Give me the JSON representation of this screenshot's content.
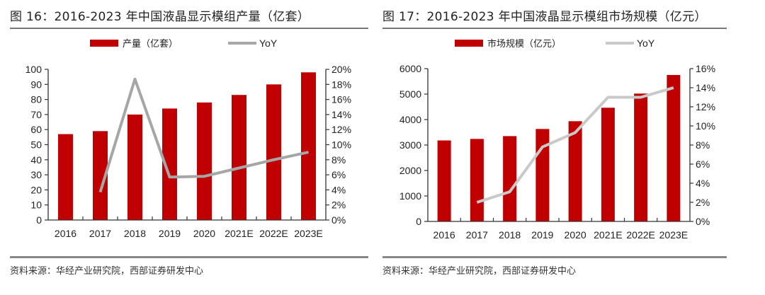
{
  "chart_data": [
    {
      "type": "bar",
      "title": "图 16：2016-2023 年中国液晶显示模组产量（亿套）",
      "categories": [
        "2016",
        "2017",
        "2018",
        "2019",
        "2020",
        "2021E",
        "2022E",
        "2023E"
      ],
      "series": [
        {
          "name": "产量（亿套）",
          "type": "bar",
          "axis": "left",
          "color": "#c00000",
          "values": [
            57,
            59,
            70,
            74,
            78,
            83,
            90,
            98
          ]
        },
        {
          "name": "YoY",
          "type": "line",
          "axis": "right",
          "color": "#a6a6a6",
          "values": [
            null,
            3.7,
            18.7,
            5.7,
            5.8,
            6.9,
            8.0,
            9.0
          ]
        }
      ],
      "ylim": [
        0,
        100
      ],
      "yticks": [
        "0",
        "10",
        "20",
        "30",
        "40",
        "50",
        "60",
        "70",
        "80",
        "90",
        "100"
      ],
      "y2lim": [
        0,
        20
      ],
      "y2ticks": [
        "0%",
        "2%",
        "4%",
        "6%",
        "8%",
        "10%",
        "12%",
        "14%",
        "16%",
        "18%",
        "20%"
      ],
      "legend": "top-center",
      "grid": false,
      "source": "资料来源：华经产业研究院，西部证券研发中心"
    },
    {
      "type": "bar",
      "title": "图 17：2016-2023 年中国液晶显示模组市场规模（亿元）",
      "categories": [
        "2016",
        "2017",
        "2018",
        "2019",
        "2020",
        "2021E",
        "2022E",
        "2023E"
      ],
      "series": [
        {
          "name": "市场规模（亿元）",
          "type": "bar",
          "axis": "left",
          "color": "#c00000",
          "values": [
            3180,
            3240,
            3350,
            3630,
            3935,
            4465,
            5020,
            5750
          ]
        },
        {
          "name": "YoY",
          "type": "line",
          "axis": "right",
          "color": "#c9c9c9",
          "values": [
            null,
            2.0,
            3.1,
            7.8,
            9.3,
            13.0,
            13.0,
            14.0
          ]
        }
      ],
      "ylim": [
        0,
        6000
      ],
      "yticks": [
        "0",
        "1000",
        "2000",
        "3000",
        "4000",
        "5000",
        "6000"
      ],
      "y2lim": [
        0,
        16
      ],
      "y2ticks": [
        "0%",
        "2%",
        "4%",
        "6%",
        "8%",
        "10%",
        "12%",
        "14%",
        "16%"
      ],
      "legend": "top-center",
      "grid": false,
      "source": "资料来源：华经产业研究院，西部证券研发中心"
    }
  ]
}
